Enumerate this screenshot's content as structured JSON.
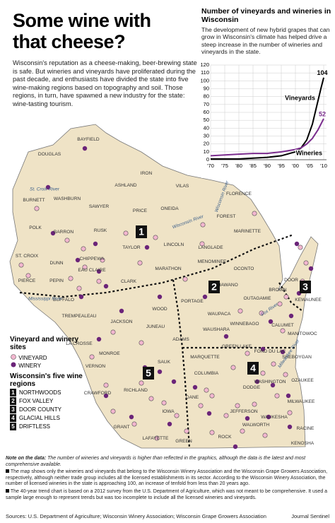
{
  "title": [
    "Some wine with",
    "that cheese?"
  ],
  "intro": "Wisconsin's reputation as a cheese-making, beer-brewing state is safe. But wineries and vineyards have proliferated during the past decade, and enthusiasts have divided the state into five wine-making regions based on topography and soil. Those regions, in turn, have spawned a new industry for the state: wine-tasting tourism.",
  "chart_data": {
    "type": "line",
    "title": "Number of vineyards and wineries in Wisconsin",
    "subtitle": "The development of new hybrid grapes that can grow in Wisconsin's climate has helped drive a steep increase in the number of wineries and vineyards in the state.",
    "x": [
      1970,
      1975,
      1980,
      1985,
      1990,
      1995,
      2000,
      2002,
      2004,
      2006,
      2008,
      2009,
      2010
    ],
    "series": [
      {
        "name": "Vineyards",
        "color": "#000000",
        "values": [
          1,
          1,
          1,
          2,
          3,
          5,
          10,
          15,
          25,
          45,
          75,
          90,
          104
        ]
      },
      {
        "name": "Wineries",
        "color": "#7b2d8e",
        "values": [
          5,
          6,
          7,
          8,
          8,
          10,
          13,
          15,
          20,
          27,
          38,
          45,
          52
        ]
      }
    ],
    "xlim": [
      1970,
      2011
    ],
    "xticks": [
      {
        "value": 1970,
        "label": "'70"
      },
      {
        "value": 1975,
        "label": "'75"
      },
      {
        "value": 1980,
        "label": "'80"
      },
      {
        "value": 1985,
        "label": "'85"
      },
      {
        "value": 1990,
        "label": "'90"
      },
      {
        "value": 1995,
        "label": "'95"
      },
      {
        "value": 2000,
        "label": "'00"
      },
      {
        "value": 2005,
        "label": "'05"
      },
      {
        "value": 2010,
        "label": "'10"
      }
    ],
    "ylim": [
      0,
      120
    ],
    "yticks": [
      0,
      10,
      20,
      30,
      40,
      50,
      60,
      70,
      80,
      90,
      100,
      110,
      120
    ],
    "grid": true
  },
  "counties": [
    "DOUGLAS",
    "BAYFIELD",
    "ASHLAND",
    "IRON",
    "VILAS",
    "BURNETT",
    "WASHBURN",
    "SAWYER",
    "PRICE",
    "ONEIDA",
    "FLORENCE",
    "FOREST",
    "POLK",
    "BARRON",
    "RUSK",
    "LINCOLN",
    "LANGLADE",
    "MARINETTE",
    "TAYLOR",
    "ST. CROIX",
    "CHIPPEWA",
    "DUNN",
    "MARATHON",
    "MENOMINEE",
    "OCONTO",
    "DOOR",
    "PIERCE",
    "PEPIN",
    "EAU CLAIRE",
    "CLARK",
    "SHAWANO",
    "BUFFALO",
    "KEWAUNEE",
    "BROWN",
    "WOOD",
    "PORTAGE",
    "OUTAGAMIE",
    "WAUPACA",
    "TREMPEALEAU",
    "JACKSON",
    "JUNEAU",
    "WAUSHARA",
    "WINNEBAGO",
    "CALUMET",
    "MANITOWOC",
    "MONROE",
    "ADAMS",
    "MARQUETTE",
    "GREEN LAKE",
    "FOND DU LAC",
    "SHEBOYGAN",
    "LA CROSSE",
    "VERNON",
    "SAUK",
    "COLUMBIA",
    "DODGE",
    "WASHINGTON",
    "OZAUKEE",
    "CRAWFORD",
    "RICHLAND",
    "DANE",
    "JEFFERSON",
    "WAUKESHA",
    "MILWAUKEE",
    "GRANT",
    "IOWA",
    "LAFAYETTE",
    "GREEN",
    "ROCK",
    "WALWORTH",
    "RACINE",
    "KENOSHA"
  ],
  "rivers": [
    "St. Croix River",
    "Mississippi River",
    "Wisconsin River",
    "Wisconsin River",
    "Fox River",
    "Milwaukee River"
  ],
  "legend": {
    "sites_title": "Vineyard and winery sites",
    "vineyard": "VINEYARD",
    "winery": "WINERY",
    "regions_title": "Wisconsin's five wine regions"
  },
  "regions": [
    {
      "number": "1",
      "name": "NORTHWOODS"
    },
    {
      "number": "2",
      "name": "FOX VALLEY"
    },
    {
      "number": "3",
      "name": "DOOR COUNTY"
    },
    {
      "number": "4",
      "name": "GLACIAL HILLS"
    },
    {
      "number": "5",
      "name": "DRIFTLESS"
    }
  ],
  "notes": {
    "label": "Note on the data:",
    "text": "The number of wineries and vineyards is higher than reflected in the graphics, although the data is the latest and most comprehensive available.",
    "items": [
      "The map shows only the wineries and vineyards that belong to the Wisconsin Winery Association and the Wisconsin Grape Growers Association, respectively, although neither trade group includes all the licensed establishments in its sector. According to the Wisconsin Winery Association, the number of licensed wineries in the state is approaching 100, an increase of tenfold from less than 20 years ago.",
      "The 40-year trend chart is based on a 2012 survey from the U.S. Department of Agriculture, which was not meant to be comprehensive. It used a sample large enough to represent trends but was too incomplete to include all the licensed wineries and vineyards."
    ]
  },
  "sources": "Sources: U.S. Department of Agriculture; Wisconsin Winery Association; Wisconsin Grape Growers Association",
  "credit": "Journal Sentinel"
}
